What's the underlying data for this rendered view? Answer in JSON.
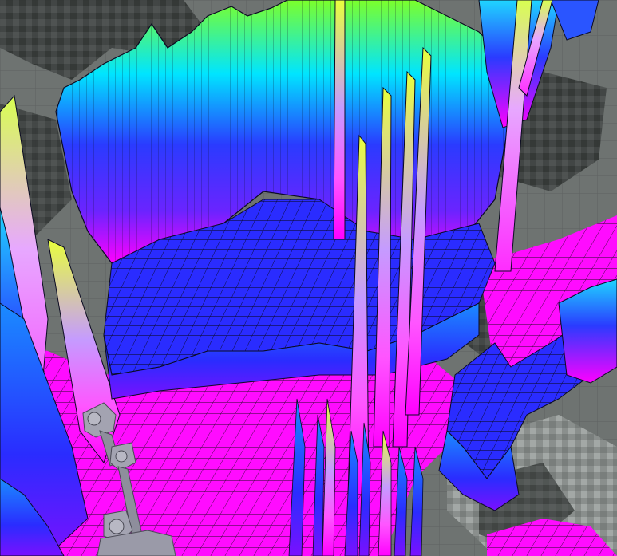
{
  "scene": {
    "description_colors": {
      "floor_grid": "#6e7371",
      "occupancy_dark": "#3a3d3c",
      "occupancy_light": "#9aa09e",
      "height_low": "#ff00ff",
      "height_mid": "#2222ff",
      "height_midhigh": "#00e5ff",
      "height_high": "#7cff2a",
      "height_peak": "#e8ff3c",
      "mesh_line": "#0b0b22",
      "robot_arm": "#9a9aa8"
    },
    "icons": [
      "robot-arm-model"
    ]
  }
}
